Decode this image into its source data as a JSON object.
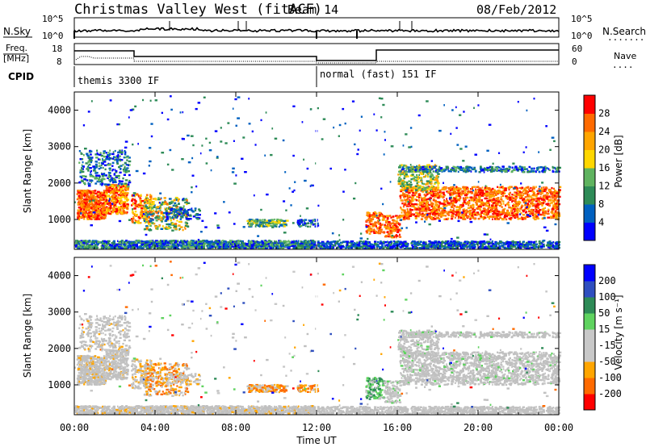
{
  "header": {
    "station": "Christmas Valley West (fitACF)",
    "beam": "Beam 14",
    "date": "08/Feb/2012"
  },
  "top_panels": {
    "nsky_label": "N.Sky",
    "nsearch_label": "N.Search",
    "nsearch_legend": "........",
    "nsky_ticks": [
      "10^5",
      "10^0"
    ],
    "nsearch_ticks": [
      "10^5",
      "10^0"
    ],
    "freq_label_line1": "Freq.",
    "freq_label_line2": "[MHz]",
    "freq_ticks": [
      "18",
      "8"
    ],
    "nave_label": "Nave",
    "nave_legend": "....",
    "nave_ticks": [
      "60",
      "0"
    ],
    "cpid_label": "CPID",
    "cpid_segments": [
      "themis 3300 IF",
      "normal (fast) 151 IF"
    ]
  },
  "colors": {
    "power_scale": [
      "#0000ff",
      "#0060c0",
      "#2e8b57",
      "#5fb35f",
      "#ffd700",
      "#ffa500",
      "#ff6a00",
      "#ff0000"
    ],
    "velocity_scale": [
      "#ff0000",
      "#ff6a00",
      "#ffa500",
      "#c8c8c8",
      "#c8c8c8",
      "#5fd35f",
      "#2e8b57",
      "#2f4fbf",
      "#0000ff"
    ],
    "ground": "#c0c0c0"
  },
  "chart_data": [
    {
      "type": "heatmap",
      "title": "",
      "xlabel": "Time UT",
      "ylabel": "Slant Range [km]",
      "xlim": [
        "00:00",
        "00:00"
      ],
      "x_tick_labels": [
        "00:00",
        "04:00",
        "08:00",
        "12:00",
        "16:00",
        "20:00",
        "00:00"
      ],
      "ylim": [
        180,
        4500
      ],
      "y_ticks": [
        1000,
        2000,
        3000,
        4000
      ],
      "colorbar_label": "Power [dB]",
      "colorbar_ticks": [
        "28",
        "24",
        "20",
        "16",
        "12",
        "8",
        "4"
      ],
      "colorbar_range": [
        0,
        32
      ]
    },
    {
      "type": "heatmap",
      "title": "",
      "xlabel": "Time UT",
      "ylabel": "Slant Range [km]",
      "xlim": [
        "00:00",
        "00:00"
      ],
      "x_tick_labels": [
        "00:00",
        "04:00",
        "08:00",
        "12:00",
        "16:00",
        "20:00",
        "00:00"
      ],
      "ylim": [
        180,
        4500
      ],
      "y_ticks": [
        1000,
        2000,
        3000,
        4000
      ],
      "colorbar_label": "Velocity [m s⁻¹]",
      "colorbar_ticks": [
        "200",
        "100",
        "50",
        "15",
        "-15",
        "-50",
        "-100",
        "-200"
      ]
    }
  ]
}
